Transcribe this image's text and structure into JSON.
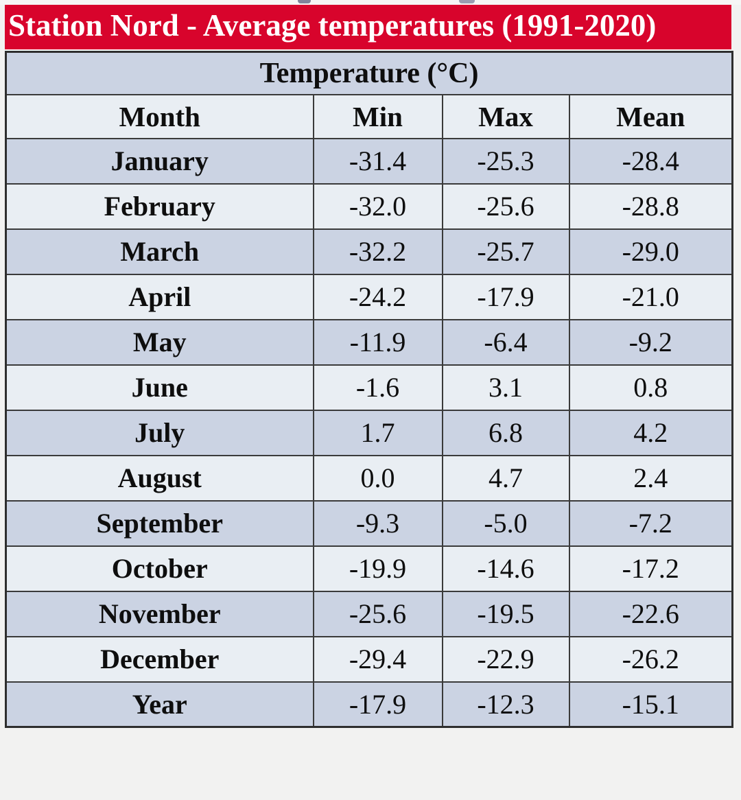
{
  "title_banner": {
    "title": "Station Nord - Average temperatures (1991-2020)"
  },
  "chart_data": {
    "type": "table",
    "title": "Station Nord - Average temperatures (1991-2020)",
    "caption": "Temperature (°C)",
    "unit": "°C",
    "columns": [
      "Month",
      "Min",
      "Max",
      "Mean"
    ],
    "categories": [
      "January",
      "February",
      "March",
      "April",
      "May",
      "June",
      "July",
      "August",
      "September",
      "October",
      "November",
      "December",
      "Year"
    ],
    "series": [
      {
        "name": "Min",
        "values": [
          -31.4,
          -32.0,
          -32.2,
          -24.2,
          -11.9,
          -1.6,
          1.7,
          0.0,
          -9.3,
          -19.9,
          -25.6,
          -29.4,
          -17.9
        ]
      },
      {
        "name": "Max",
        "values": [
          -25.3,
          -25.6,
          -25.7,
          -17.9,
          -6.4,
          3.1,
          6.8,
          4.7,
          -5.0,
          -14.6,
          -19.5,
          -22.9,
          -12.3
        ]
      },
      {
        "name": "Mean",
        "values": [
          -28.4,
          -28.8,
          -29.0,
          -21.0,
          -9.2,
          0.8,
          4.2,
          2.4,
          -7.2,
          -17.2,
          -22.6,
          -26.2,
          -15.1
        ]
      }
    ],
    "layout_hints": {
      "row_striping": "alternating starting dark on January",
      "value_precision": 1
    }
  },
  "colors": {
    "accent_red": "#d8042c",
    "row_dark": "#cbd3e3",
    "row_light": "#e9eef3",
    "border_dark": "#3a3a3a",
    "text_dark": "#0e0e0e",
    "title_text": "#ffffff",
    "page_background": "#f2f2f1"
  }
}
